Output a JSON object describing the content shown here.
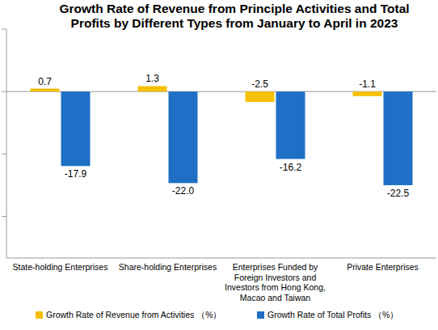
{
  "chart_data": {
    "type": "bar",
    "title": "Growth Rate of Revenue from Principle Activities and Total Profits by Different Types from January to April in 2023",
    "categories": [
      "State-holding Enterprises",
      "Share-holding Enterprises",
      "Enterprises Funded by Foreign Investors and Investors from Hong Kong, Macao and Taiwan",
      "Private Enterprises"
    ],
    "series": [
      {
        "name": "Growth Rate of Revenue from Activities （%）",
        "color": "#f5c000",
        "values": [
          0.7,
          1.3,
          -2.5,
          -1.1
        ]
      },
      {
        "name": "Growth Rate of Total Profits （%）",
        "color": "#1f6fc6",
        "values": [
          -17.9,
          -22.0,
          -16.2,
          -22.5
        ],
        "value_labels": [
          "-17.9",
          "-22.0",
          "-16.2",
          "-22.5"
        ]
      }
    ],
    "ylim": [
      -40,
      15
    ],
    "yticks": [
      -30,
      -15,
      0,
      15
    ],
    "grid": false,
    "legend": "bottom",
    "data_labels": true,
    "tick_labels": "x"
  }
}
